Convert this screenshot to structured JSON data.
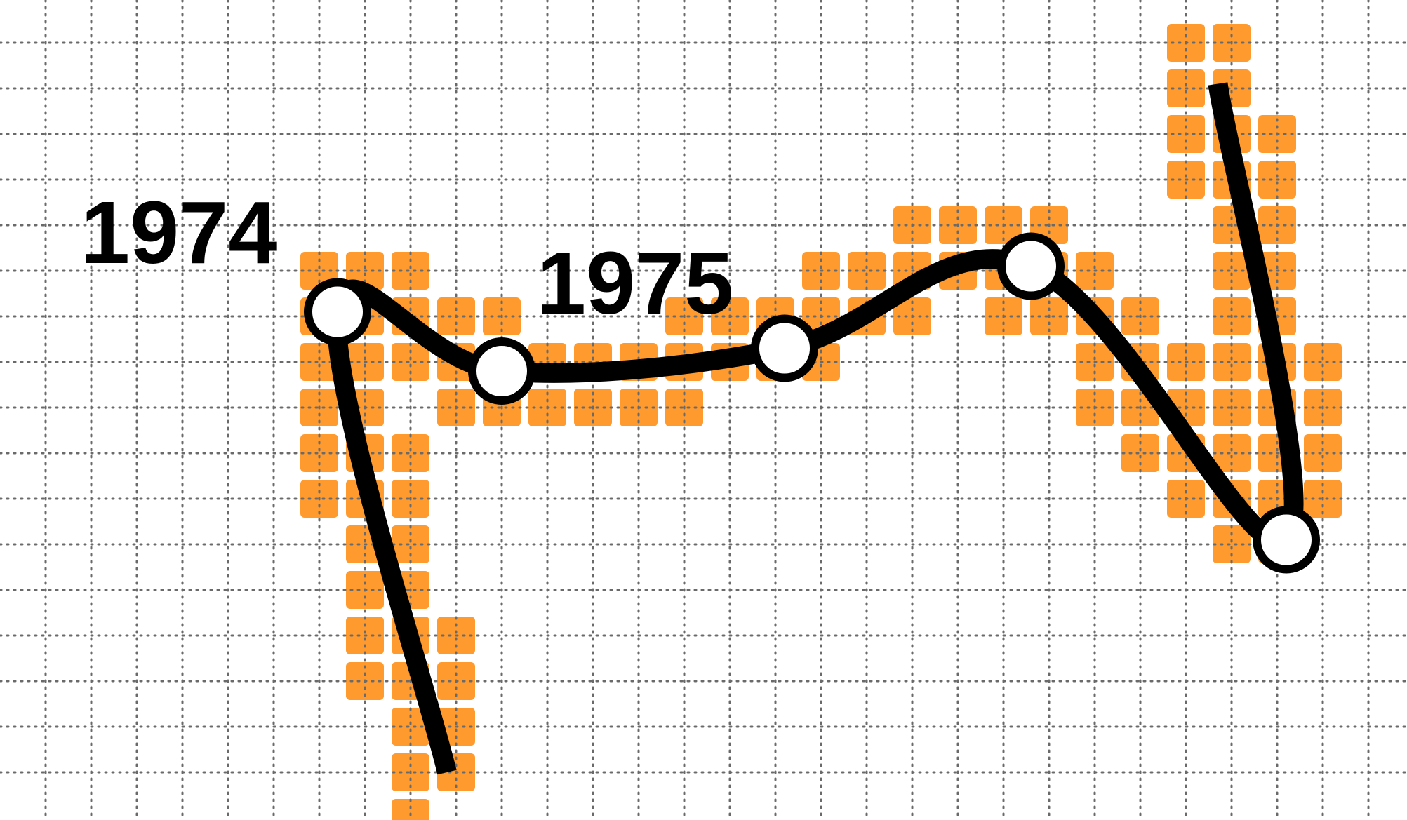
{
  "chart_data": {
    "type": "line",
    "title": "",
    "xlabel": "",
    "ylabel": "",
    "grid": true,
    "line_color": "#000000",
    "marker_fill": "#ffffff",
    "cell_color": "#ff9a2e",
    "grid_color": "#6a6a6a",
    "annotations": [
      {
        "text": "1974",
        "near_point": 1
      },
      {
        "text": "1975",
        "near_point": 2
      }
    ],
    "points": [
      {
        "x": 9.8,
        "y": 0.0
      },
      {
        "x": 7.4,
        "y": 10.1
      },
      {
        "x": 11.0,
        "y": 8.8
      },
      {
        "x": 17.2,
        "y": 9.3
      },
      {
        "x": 22.6,
        "y": 11.1
      },
      {
        "x": 28.2,
        "y": 5.1
      },
      {
        "x": 26.7,
        "y": 15.1
      }
    ]
  }
}
